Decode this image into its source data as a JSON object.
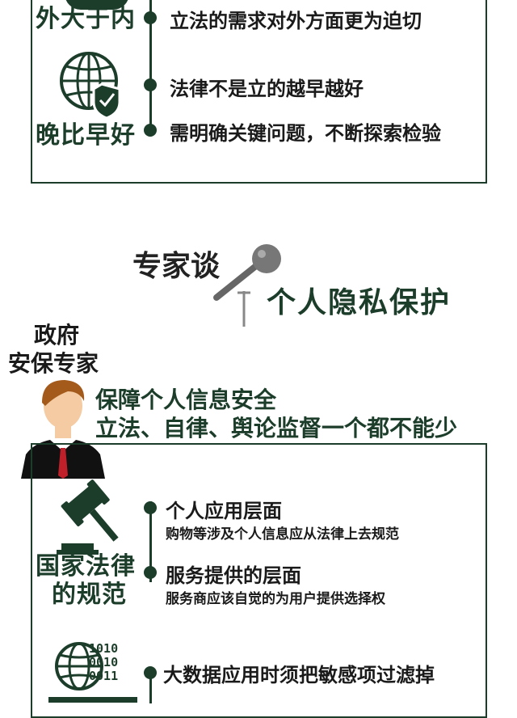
{
  "top_panel": {
    "row1": {
      "label": "外大于内",
      "text": "立法的需求对外方面更为迫切"
    },
    "row2": {
      "label": "晚比早好",
      "lines": [
        "法律不是立的越早越好",
        "需明确关键问题，不断探索检验"
      ]
    }
  },
  "experts": {
    "title_small": "专家谈",
    "title_big": "个人隐私保护"
  },
  "speaker": {
    "role_line1": "政府",
    "role_line2": "安保专家",
    "quote_line1": "保障个人信息安全",
    "quote_line2": "立法、自律、舆论监督一个都不能少"
  },
  "bottom_panel": {
    "law_label_line1": "国家法律",
    "law_label_line2": "的规范",
    "items": [
      {
        "heading": "个人应用层面",
        "sub": "购物等涉及个人信息应从法律上去规范"
      },
      {
        "heading": "服务提供的层面",
        "sub": "服务商应该自觉的为用户提供选择权"
      }
    ],
    "binary": [
      "1010",
      "0010",
      "0011"
    ],
    "data_text": "大数据应用时须把敏感项过滤掉"
  },
  "colors": {
    "accent": "#1c3d2a",
    "skin": "#f4cba2",
    "hair": "#a35a1b",
    "tie": "#c0202a"
  }
}
